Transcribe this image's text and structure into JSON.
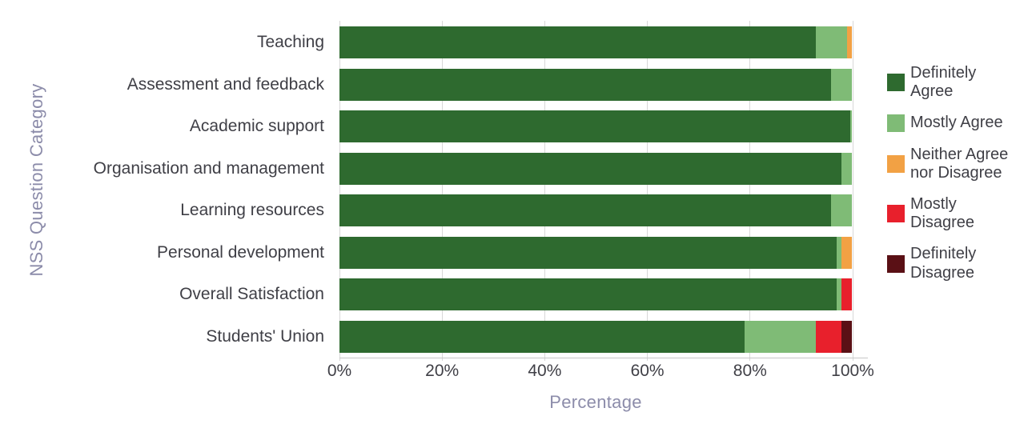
{
  "chart_data": {
    "type": "bar",
    "orientation": "horizontal",
    "stacked": true,
    "title": "",
    "xlabel": "Percentage",
    "ylabel": "NSS Question Category",
    "xlim": [
      0,
      100
    ],
    "x_tick_labels": [
      "0%",
      "20%",
      "40%",
      "60%",
      "80%",
      "100%"
    ],
    "grid": true,
    "legend_position": "right",
    "categories": [
      "Teaching",
      "Assessment and feedback",
      "Academic support",
      "Organisation and management",
      "Learning resources",
      "Personal development",
      "Overall Satisfaction",
      "Students' Union"
    ],
    "series": [
      {
        "name": "Definitely Agree",
        "color": "#2e6a2f",
        "values": [
          93,
          96,
          99.7,
          98,
          96,
          97,
          97,
          79
        ]
      },
      {
        "name": "Mostly Agree",
        "color": "#7fbb76",
        "values": [
          6,
          4,
          0.3,
          2,
          4,
          1,
          1,
          14
        ]
      },
      {
        "name": "Neither Agree nor Disagree",
        "color": "#f2a144",
        "values": [
          1,
          0,
          0,
          0,
          0,
          2,
          0,
          0
        ]
      },
      {
        "name": "Mostly Disagree",
        "color": "#e8202c",
        "values": [
          0,
          0,
          0,
          0,
          0,
          0,
          2,
          5
        ]
      },
      {
        "name": "Definitely Disagree",
        "color": "#5a1015",
        "values": [
          0,
          0,
          0,
          0,
          0,
          0,
          0,
          2
        ]
      }
    ],
    "style": {
      "gridline_color": "#d8d8d8",
      "axis_line_color": "#c6c6c6",
      "tick_label_color": "#3f3f46",
      "axis_title_color": "#8c8caa"
    }
  }
}
